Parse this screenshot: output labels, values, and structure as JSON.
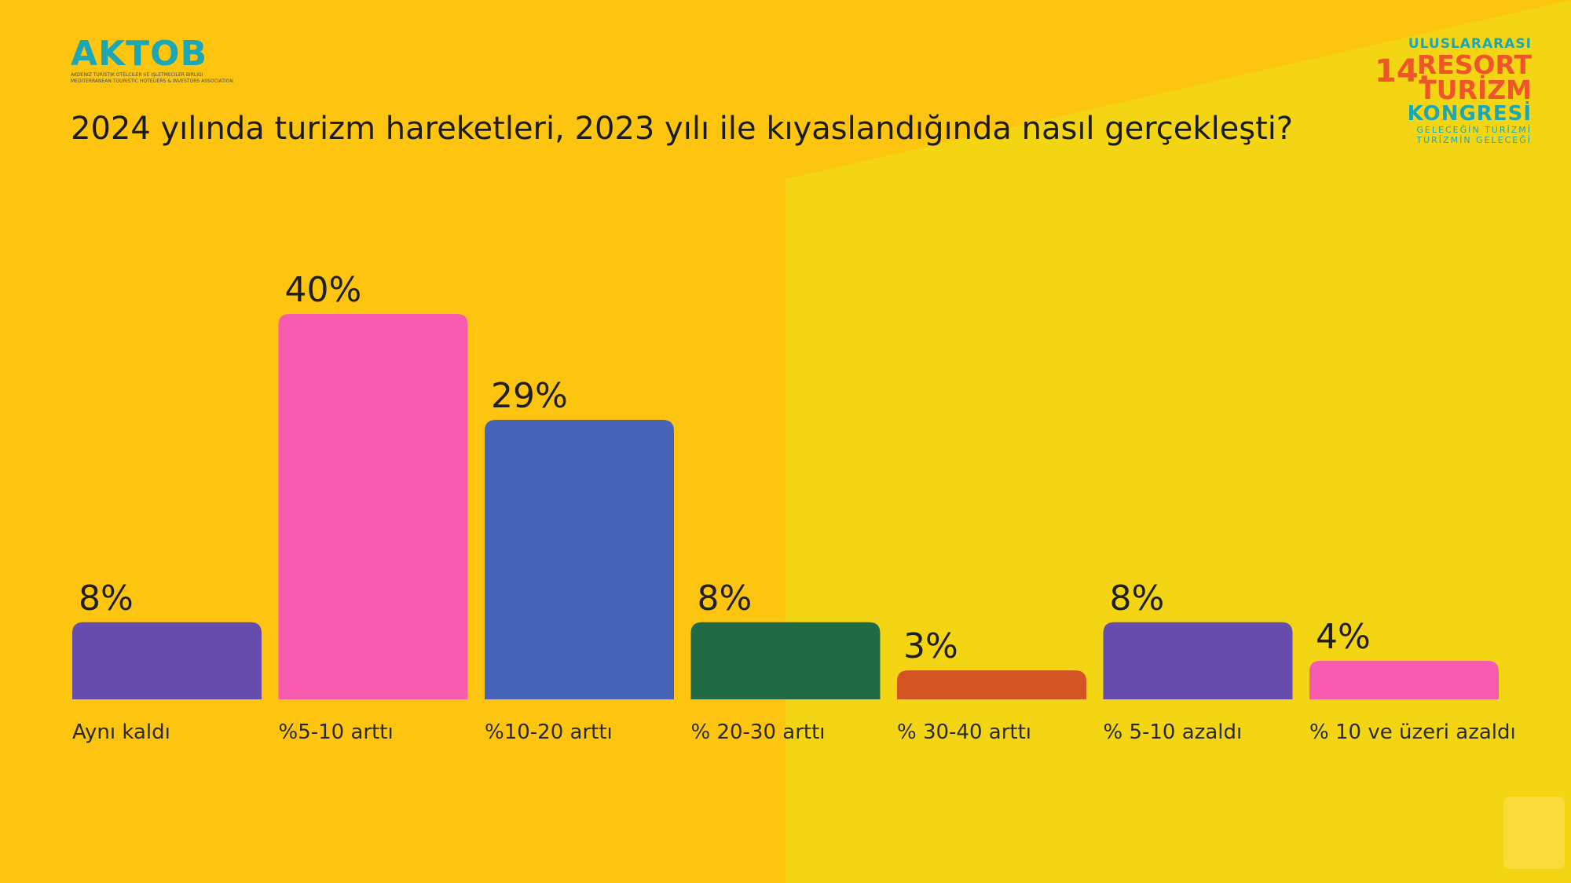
{
  "header": {
    "title": "2024 yılında turizm hareketleri, 2023 yılı ile kıyaslandığında nasıl gerçekleşti?"
  },
  "logo_left": {
    "name": "AKTOB",
    "line1": "AKDENİZ TURİSTİK OTELCİLER VE İŞLETMECİLER BİRLİĞİ",
    "line2": "MEDITERRANEAN TOURISTIC HOTELIERS & INVESTORS ASSOCIATION"
  },
  "logo_right": {
    "top": "ULUSLARARASI",
    "number": "14.",
    "resort": "RESORT",
    "turizm": "TURİZM",
    "kongre": "KONGRESİ",
    "sub1": "GELECEĞİN TURİZMİ",
    "sub2": "TURİZMİN GELECEĞİ"
  },
  "colors": {
    "background": "#FDC50F",
    "background_right": "#F3D514",
    "purple": "#664CAC",
    "pink": "#F65BB0",
    "blue": "#4663B7",
    "green": "#216A46",
    "orange": "#D45322"
  },
  "chart_data": {
    "type": "bar",
    "categories": [
      "Aynı kaldı",
      "%5-10 arttı",
      "%10-20 arttı",
      "% 20-30 arttı",
      "% 30-40 arttı",
      "% 5-10 azaldı",
      "% 10 ve üzeri azaldı"
    ],
    "values": [
      8,
      40,
      29,
      8,
      3,
      8,
      4
    ],
    "value_labels": [
      "8%",
      "40%",
      "29%",
      "8%",
      "3%",
      "8%",
      "4%"
    ],
    "bar_colors": [
      "#664CAC",
      "#F65BB0",
      "#4663B7",
      "#216A46",
      "#D45322",
      "#664CAC",
      "#F65BB0"
    ],
    "title": "",
    "xlabel": "",
    "ylabel": "",
    "ylim": [
      0,
      40
    ],
    "grid": false,
    "legend": "none"
  }
}
